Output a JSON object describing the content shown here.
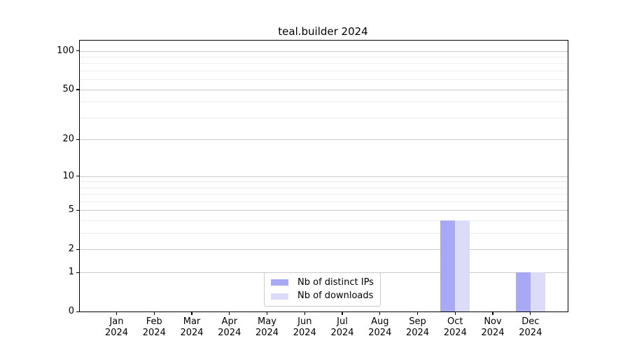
{
  "chart_data": {
    "type": "bar",
    "title": "teal.builder 2024",
    "xlabel": "",
    "ylabel": "",
    "year_label": "2024",
    "categories": [
      "Jan",
      "Feb",
      "Mar",
      "Apr",
      "May",
      "Jun",
      "Jul",
      "Aug",
      "Sep",
      "Oct",
      "Nov",
      "Dec"
    ],
    "series": [
      {
        "name": "Nb of distinct IPs",
        "color": "#a8a8f5",
        "values": [
          0,
          0,
          0,
          0,
          0,
          0,
          0,
          0,
          0,
          4,
          0,
          1
        ]
      },
      {
        "name": "Nb of downloads",
        "color": "#dcdcf8",
        "values": [
          0,
          0,
          0,
          0,
          0,
          0,
          0,
          0,
          0,
          4,
          0,
          1
        ]
      }
    ],
    "yaxis": {
      "scale": "log1p",
      "major_ticks": [
        0,
        1,
        2,
        5,
        10,
        20,
        50,
        100
      ],
      "minor_ticks": [
        3,
        4,
        6,
        7,
        8,
        9,
        30,
        40,
        60,
        70,
        80,
        90
      ],
      "axis_top_value": 120
    },
    "legend": {
      "position": "lower center",
      "entries": [
        "Nb of distinct IPs",
        "Nb of downloads"
      ]
    },
    "grid": true,
    "colors": {
      "major_grid": "#c9c9c9",
      "minor_grid": "#ececec",
      "spine": "#000000",
      "background": "#ffffff"
    }
  }
}
